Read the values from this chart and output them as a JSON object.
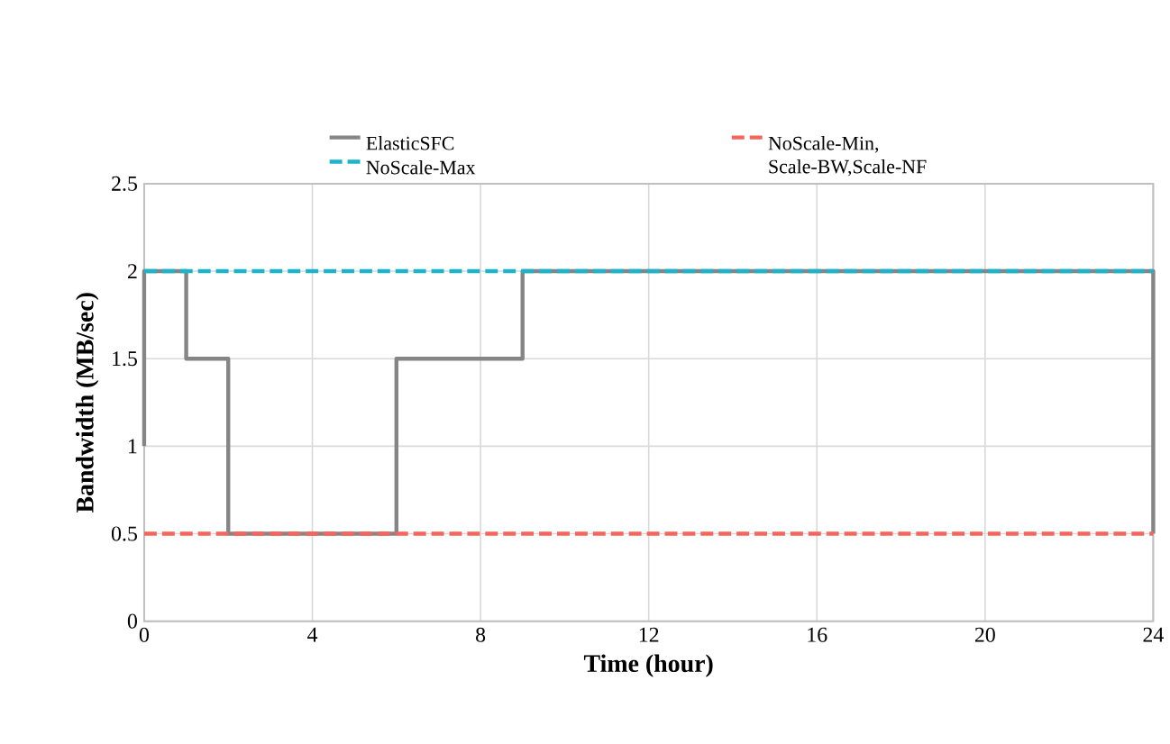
{
  "chart_data": {
    "type": "line",
    "xlabel": "Time (hour)",
    "ylabel": "Bandwidth (MB/sec)",
    "xlim": [
      0,
      24
    ],
    "xticks": [
      0,
      4,
      8,
      12,
      16,
      20,
      24
    ],
    "ylim": [
      0,
      2.5
    ],
    "yticks": [
      0,
      0.5,
      1,
      1.5,
      2,
      2.5
    ],
    "grid": true,
    "legend": "top",
    "marker": "none",
    "series": [
      {
        "name": "ElasticSFC",
        "color": "#858585",
        "line_style": "solid",
        "x": [
          0,
          0,
          1,
          1,
          2,
          2,
          6,
          6,
          9,
          9,
          24,
          24
        ],
        "values": [
          1,
          2,
          2,
          1.5,
          1.5,
          0.5,
          0.5,
          1.5,
          1.5,
          2,
          2,
          0.5
        ]
      },
      {
        "name": "NoScale-Min, Scale-BW,Scale-NF",
        "color": "#f4665c",
        "line_style": "dashed",
        "x": [
          0,
          24
        ],
        "values": [
          0.5,
          0.5
        ]
      },
      {
        "name": "NoScale-Max",
        "color": "#1cb4c8",
        "line_style": "dashed",
        "x": [
          0,
          24
        ],
        "values": [
          2,
          2
        ]
      }
    ]
  }
}
